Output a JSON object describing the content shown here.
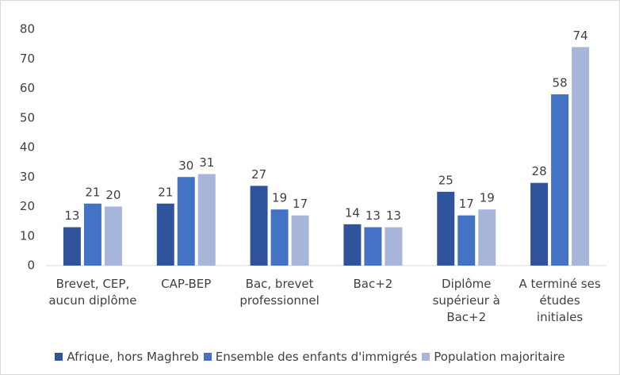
{
  "chart_data": {
    "type": "bar",
    "categories": [
      "Brevet, CEP, aucun diplôme",
      "CAP-BEP",
      "Bac, brevet professionnel",
      "Bac+2",
      "Diplôme supérieur à Bac+2",
      "A terminé ses études initiales"
    ],
    "series": [
      {
        "name": "Afrique, hors Maghreb",
        "color": "#2f549c",
        "values": [
          13,
          21,
          27,
          14,
          25,
          28
        ]
      },
      {
        "name": "Ensemble des enfants d'immigrés",
        "color": "#4472c4",
        "values": [
          21,
          30,
          19,
          13,
          17,
          58
        ]
      },
      {
        "name": "Population majoritaire",
        "color": "#a8b6dc",
        "values": [
          20,
          31,
          17,
          13,
          19,
          74
        ]
      }
    ],
    "ylim": [
      0,
      80
    ],
    "yticks": [
      0,
      10,
      20,
      30,
      40,
      50,
      60,
      70,
      80
    ],
    "grid": false,
    "legend": "bottom"
  }
}
